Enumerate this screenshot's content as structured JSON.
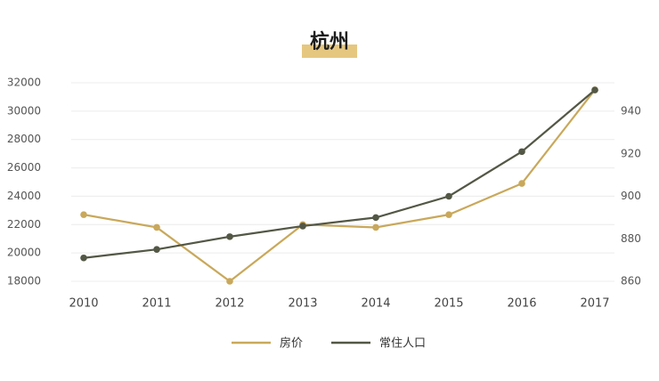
{
  "chart_data": {
    "type": "line",
    "title": "杭州",
    "categories": [
      "2010",
      "2011",
      "2012",
      "2013",
      "2014",
      "2015",
      "2016",
      "2017"
    ],
    "y_left": {
      "ticks": [
        18000,
        20000,
        22000,
        24000,
        26000,
        28000,
        30000,
        32000
      ],
      "range": [
        17000,
        32000
      ]
    },
    "y_right": {
      "ticks": [
        860,
        880,
        900,
        920,
        940
      ],
      "range": [
        855,
        950
      ]
    },
    "series": [
      {
        "name": "房价",
        "axis": "left",
        "color": "#c9a85a",
        "values": [
          22700,
          21800,
          18000,
          22000,
          21800,
          22700,
          24900,
          31500
        ]
      },
      {
        "name": "常住人口",
        "axis": "right",
        "color": "#535745",
        "values": [
          871,
          875,
          881,
          886,
          890,
          900,
          921,
          950
        ]
      }
    ],
    "grid": true,
    "legend": "bottom"
  }
}
